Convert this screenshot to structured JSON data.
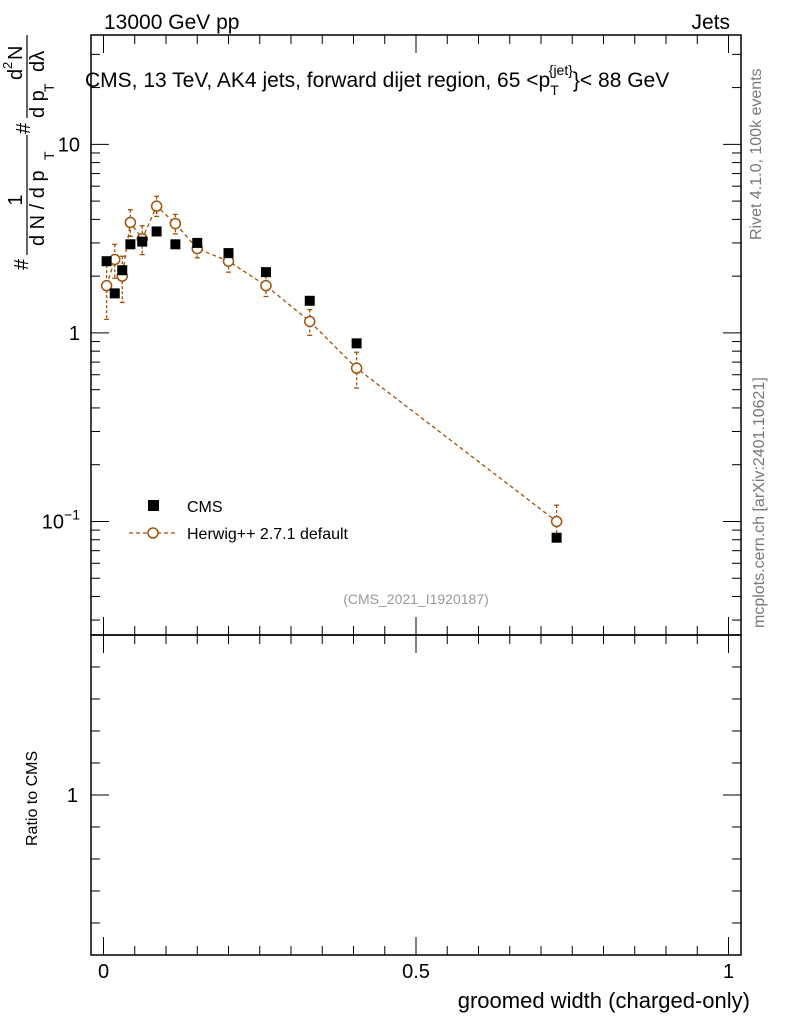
{
  "header": {
    "beam": "13000 GeV pp",
    "category": "Jets",
    "plot_title_main": "CMS, 13 TeV, AK4 jets, forward dijet region, 65 <p",
    "plot_title_sub": "T",
    "plot_title_sup": "{jet}",
    "plot_title_end": "}< 88 GeV",
    "analysis_id": "(CMS_2021_I1920187)"
  },
  "side_text": {
    "rivet": "Rivet 4.1.0,  100k events",
    "mcplots": "mcplots.cern.ch [arXiv:2401.10621]"
  },
  "colors": {
    "cms": "#000000",
    "herwig": "#a0520a",
    "axis": "#000000",
    "side_text": "#777777"
  },
  "chart_data": [
    {
      "type": "scatter",
      "panel": "main",
      "yscale": "log",
      "xlim": [
        -0.02,
        1.02
      ],
      "ylim": [
        0.025,
        38
      ],
      "ylabel_parts": [
        "#",
        "1",
        "d N / d p",
        "T",
        "#",
        "d p",
        "T",
        "d",
        "2",
        "N",
        "dλ"
      ],
      "yticks": [
        {
          "value": 10,
          "label": "10"
        },
        {
          "value": 1,
          "label": "1"
        },
        {
          "value": 0.1,
          "label": "10",
          "sup": "−1"
        }
      ],
      "legend": [
        {
          "label": "CMS",
          "marker": "filled-square"
        },
        {
          "label": "Herwig++ 2.7.1 default",
          "marker": "open-circle-dashed"
        }
      ],
      "series": [
        {
          "name": "CMS",
          "marker": "filled-square",
          "x": [
            0.005,
            0.018,
            0.03,
            0.043,
            0.062,
            0.085,
            0.115,
            0.15,
            0.2,
            0.26,
            0.33,
            0.405,
            0.725
          ],
          "y": [
            2.4,
            1.62,
            2.15,
            2.95,
            3.05,
            3.45,
            2.95,
            3.0,
            2.65,
            2.1,
            1.48,
            0.88,
            0.082
          ]
        },
        {
          "name": "Herwig++ 2.7.1 default",
          "marker": "open-circle",
          "line": "dashed",
          "x": [
            0.005,
            0.018,
            0.03,
            0.043,
            0.062,
            0.085,
            0.115,
            0.15,
            0.2,
            0.26,
            0.33,
            0.405,
            0.725
          ],
          "y": [
            1.78,
            2.45,
            2.0,
            3.85,
            3.15,
            4.7,
            3.8,
            2.8,
            2.4,
            1.78,
            1.15,
            0.65,
            0.1
          ],
          "err_lo": [
            0.6,
            0.5,
            0.55,
            0.6,
            0.55,
            0.55,
            0.45,
            0.3,
            0.3,
            0.22,
            0.18,
            0.14,
            0.018
          ],
          "err_hi": [
            0.65,
            0.5,
            0.55,
            0.65,
            0.55,
            0.6,
            0.45,
            0.3,
            0.3,
            0.22,
            0.18,
            0.14,
            0.022
          ]
        }
      ]
    },
    {
      "type": "line",
      "panel": "ratio",
      "ylabel": "Ratio to CMS",
      "xlabel": "groomed width (charged-only)",
      "xlim": [
        -0.02,
        1.02
      ],
      "ylim": [
        0.5,
        1.5
      ],
      "yticks": [
        {
          "value": 1,
          "label": "1"
        }
      ],
      "xticks": [
        {
          "value": 0,
          "label": "0"
        },
        {
          "value": 0.5,
          "label": "0.5"
        },
        {
          "value": 1,
          "label": "1"
        }
      ],
      "series": []
    }
  ]
}
